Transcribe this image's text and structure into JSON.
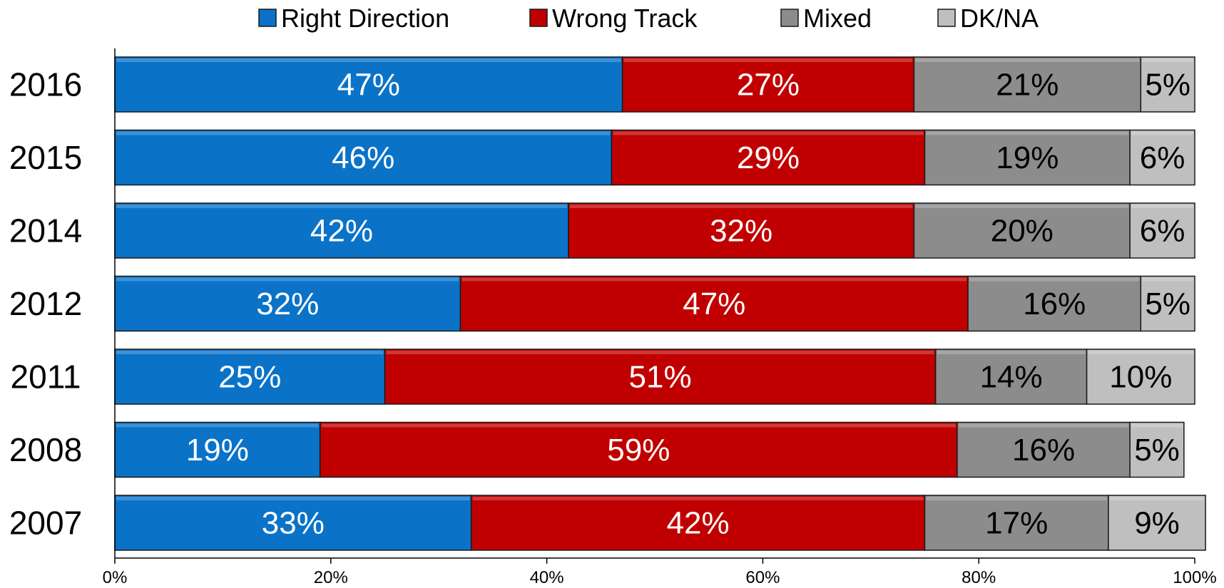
{
  "chart_data": {
    "type": "bar",
    "orientation": "horizontal",
    "stacked": true,
    "categories": [
      "2016",
      "2015",
      "2014",
      "2012",
      "2011",
      "2008",
      "2007"
    ],
    "series": [
      {
        "name": "Right Direction",
        "color": "#0A73C8",
        "values": [
          47,
          46,
          42,
          32,
          25,
          19,
          33
        ],
        "labels": [
          "47%",
          "46%",
          "42%",
          "32%",
          "25%",
          "19%",
          "33%"
        ]
      },
      {
        "name": "Wrong Track",
        "color": "#C00000",
        "values": [
          27,
          29,
          32,
          47,
          51,
          59,
          42
        ],
        "labels": [
          "27%",
          "29%",
          "32%",
          "47%",
          "51%",
          "59%",
          "42%"
        ]
      },
      {
        "name": "Mixed",
        "color": "#8C8C8C",
        "values": [
          21,
          19,
          20,
          16,
          14,
          16,
          17
        ],
        "labels": [
          "21%",
          "19%",
          "20%",
          "16%",
          "14%",
          "16%",
          "17%"
        ]
      },
      {
        "name": "DK/NA",
        "color": "#BFBFBF",
        "values": [
          5,
          6,
          6,
          5,
          10,
          5,
          9
        ],
        "labels": [
          "5%",
          "6%",
          "6%",
          "5%",
          "10%",
          "5%",
          "9%"
        ]
      }
    ],
    "xlim": [
      0,
      100
    ],
    "xticks": [
      0,
      20,
      40,
      60,
      80,
      100
    ],
    "xtick_labels": [
      "0%",
      "20%",
      "40%",
      "60%",
      "80%",
      "100%"
    ],
    "legend_position": "top",
    "grid": false,
    "title": "",
    "xlabel": "",
    "ylabel": ""
  }
}
